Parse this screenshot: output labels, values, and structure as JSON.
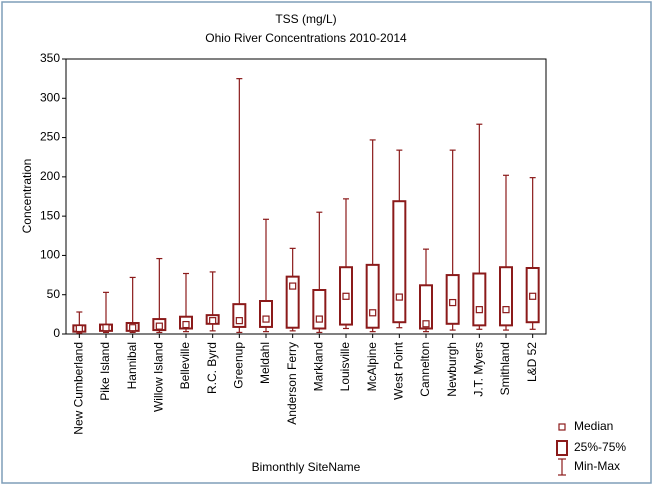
{
  "chart_data": {
    "type": "box",
    "title": "TSS (mg/L)",
    "subtitle": "Ohio River Concentrations 2010-2014",
    "x_label": "Bimonthly SiteName",
    "y_label": "Concentration",
    "categories": [
      "New Cumberland",
      "Pike Island",
      "Hannibal",
      "Willow Island",
      "Belleville",
      "R.C. Byrd",
      "Greenup",
      "Meldahl",
      "Anderson Ferry",
      "Markland",
      "Louisville",
      "McAlpine",
      "West Point",
      "Cannelton",
      "Newburgh",
      "J.T. Myers",
      "Smithland",
      "L&D 52"
    ],
    "min": [
      1,
      2,
      2,
      2,
      3,
      4,
      2,
      3,
      4,
      2,
      7,
      3,
      8,
      3,
      5,
      6,
      5,
      6
    ],
    "q1": [
      3,
      4,
      4,
      5,
      7,
      13,
      9,
      9,
      8,
      7,
      12,
      8,
      15,
      7,
      13,
      11,
      11,
      15
    ],
    "median": [
      7,
      8,
      8,
      10,
      12,
      17,
      17,
      19,
      61,
      19,
      48,
      27,
      47,
      13,
      40,
      31,
      31,
      48
    ],
    "q3": [
      11,
      12,
      14,
      19,
      22,
      24,
      38,
      42,
      73,
      56,
      85,
      88,
      169,
      62,
      75,
      77,
      85,
      84
    ],
    "max": [
      28,
      53,
      72,
      96,
      77,
      79,
      325,
      146,
      109,
      155,
      172,
      247,
      234,
      108,
      234,
      267,
      202,
      199
    ],
    "color": "#8b1a1a",
    "ylim": [
      0,
      350
    ],
    "yticks": [
      0,
      50,
      100,
      150,
      200,
      250,
      300,
      350
    ],
    "legend": [
      "Median",
      "25%-75%",
      "Min-Max"
    ],
    "legend_position": "bottom-right"
  }
}
